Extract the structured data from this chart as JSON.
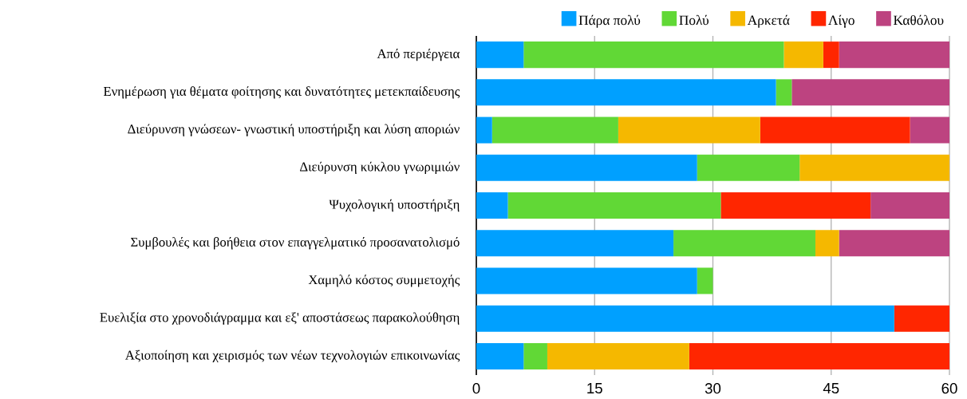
{
  "chart_data": {
    "type": "bar",
    "orientation": "horizontal",
    "stacked": true,
    "categories": [
      "Από περιέργεια",
      "Ενημέρωση για θέματα φοίτησης και δυνατότητες μετεκπαίδευσης",
      "Διεύρυνση γνώσεων- γνωστική υποστήριξη και λύση αποριών",
      "Διεύρυνση κύκλου γνωριμιών",
      "Ψυχολογική υποστήριξη",
      "Συμβουλές και βοήθεια στον επαγγελματικό προσανατολισμό",
      "Χαμηλό κόστος συμμετοχής",
      "Ευελιξία στο χρονοδιάγραμμα και εξ' αποστάσεως παρακολούθηση",
      "Αξιοποίηση και χειρισμός των νέων τεχνολογιών επικοινωνίας"
    ],
    "series": [
      {
        "name": "Πάρα πολύ",
        "color": "#00a0ff",
        "values": [
          6,
          38,
          2,
          28,
          4,
          25,
          28,
          53,
          6
        ]
      },
      {
        "name": "Πολύ",
        "color": "#61d836",
        "values": [
          33,
          2,
          16,
          13,
          27,
          18,
          2,
          0,
          3
        ]
      },
      {
        "name": "Αρκετά",
        "color": "#f5b800",
        "values": [
          5,
          0,
          18,
          19,
          0,
          3,
          0,
          0,
          18
        ]
      },
      {
        "name": "Λίγο",
        "color": "#ff2600",
        "values": [
          2,
          0,
          19,
          0,
          19,
          0,
          0,
          7,
          33
        ]
      },
      {
        "name": "Καθόλου",
        "color": "#bd4380",
        "values": [
          14,
          20,
          5,
          0,
          10,
          14,
          0,
          0,
          0
        ]
      }
    ],
    "xlim": [
      0,
      60
    ],
    "xticks": [
      0,
      15,
      30,
      45,
      60
    ],
    "grid": "x",
    "legend": "top right"
  }
}
